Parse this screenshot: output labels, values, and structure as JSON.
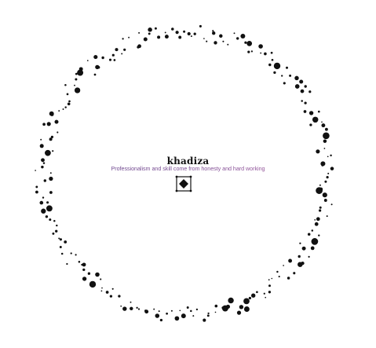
{
  "logo": {
    "brand_name": "khadiza",
    "tagline": "Professionalism and skill come from honesty and hard working",
    "icon": "diamond-frame-icon",
    "colors": {
      "ink": "#111111",
      "tagline_start": "#5a3f86",
      "tagline_end": "#b35ea3",
      "background": "#ffffff"
    }
  }
}
